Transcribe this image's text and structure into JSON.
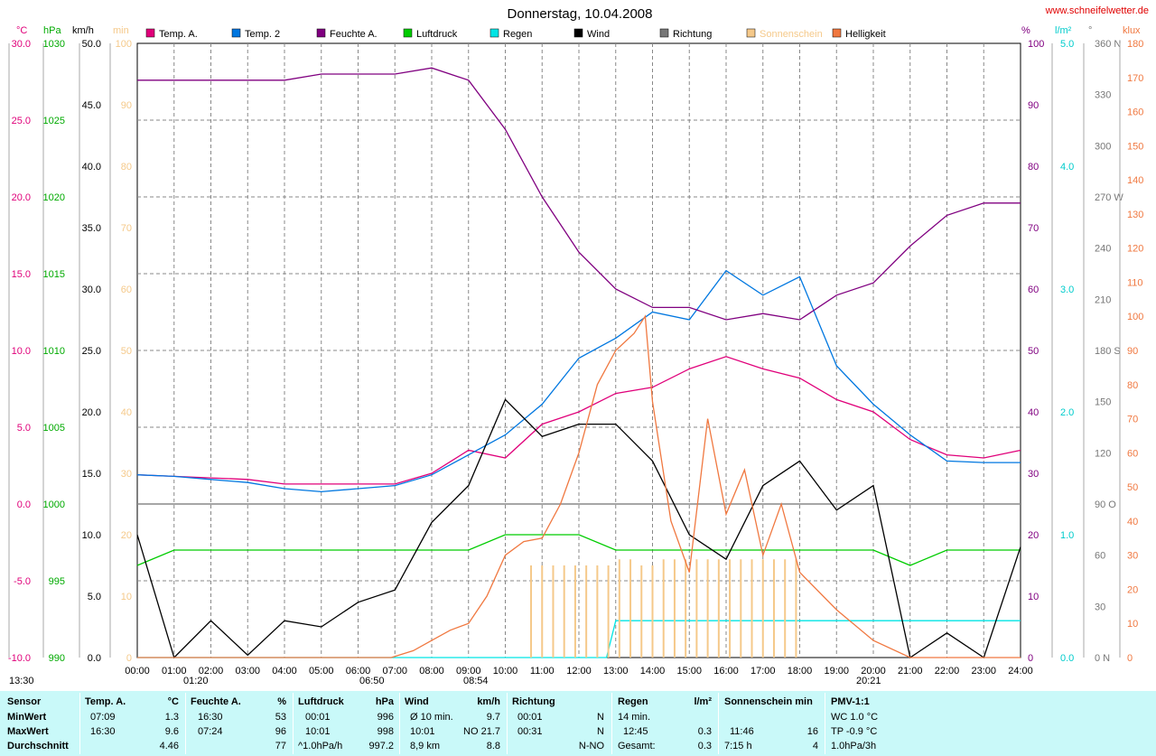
{
  "site": "www.schneifelwetter.de",
  "title": "Donnerstag, 10.04.2008",
  "legend": [
    {
      "label": "Temp. A.",
      "color": "#e0007a"
    },
    {
      "label": "Temp. 2",
      "color": "#0077e0"
    },
    {
      "label": "Feuchte A.",
      "color": "#800080"
    },
    {
      "label": "Luftdruck",
      "color": "#00cc00"
    },
    {
      "label": "Regen",
      "color": "#00e5e5"
    },
    {
      "label": "Wind",
      "color": "#000000"
    },
    {
      "label": "Richtung",
      "color": "#777777"
    },
    {
      "label": "Sonnenschein",
      "color": "#f5c98a"
    },
    {
      "label": "Helligkeit",
      "color": "#f07840"
    }
  ],
  "axis_units": {
    "temp": "°C",
    "press": "hPa",
    "wind": "km/h",
    "min": "min",
    "hum": "%",
    "rain": "l/m²",
    "dir": "°",
    "lux": "klux"
  },
  "axes": {
    "temp": [
      "30.0",
      "25.0",
      "20.0",
      "15.0",
      "10.0",
      "5.0",
      "0.0",
      "-5.0",
      "-10.0"
    ],
    "press": [
      "1030",
      "1025",
      "1020",
      "1015",
      "1010",
      "1005",
      "1000",
      "995",
      "990"
    ],
    "wind": [
      "50.0",
      "45.0",
      "40.0",
      "35.0",
      "30.0",
      "25.0",
      "20.0",
      "15.0",
      "10.0",
      "5.0",
      "0.0"
    ],
    "min": [
      "100",
      "90",
      "80",
      "70",
      "60",
      "50",
      "40",
      "30",
      "20",
      "10",
      "0"
    ],
    "hum": [
      "100",
      "90",
      "80",
      "70",
      "60",
      "50",
      "40",
      "30",
      "20",
      "10",
      "0"
    ],
    "rain": [
      "5.0",
      "4.0",
      "3.0",
      "2.0",
      "1.0",
      "0.0"
    ],
    "dir": [
      "360 N",
      "330",
      "300",
      "270 W",
      "240",
      "210",
      "180 S",
      "150",
      "120",
      "90 O",
      "60",
      "30",
      "0 N"
    ],
    "lux": [
      "180",
      "170",
      "160",
      "150",
      "140",
      "130",
      "120",
      "110",
      "100",
      "90",
      "80",
      "70",
      "60",
      "50",
      "40",
      "30",
      "20",
      "10",
      "0"
    ]
  },
  "xticks": [
    "00:00",
    "01:00",
    "02:00",
    "03:00",
    "04:00",
    "05:00",
    "06:00",
    "07:00",
    "08:00",
    "09:00",
    "10:00",
    "11:00",
    "12:00",
    "13:00",
    "14:00",
    "15:00",
    "16:00",
    "17:00",
    "18:00",
    "19:00",
    "20:00",
    "21:00",
    "22:00",
    "23:00",
    "24:00"
  ],
  "sun_marks": [
    "13:30",
    "01:20",
    "06:50",
    "08:54",
    "20:21"
  ],
  "chart_data": {
    "type": "line",
    "title": "Donnerstag, 10.04.2008",
    "x_unit": "hour",
    "series": [
      {
        "name": "Temp. A.",
        "unit": "°C",
        "color": "#e0007a",
        "x": [
          0,
          1,
          2,
          3,
          4,
          5,
          6,
          7,
          8,
          9,
          10,
          11,
          12,
          13,
          14,
          15,
          16,
          17,
          18,
          19,
          20,
          21,
          22,
          23,
          24
        ],
        "values": [
          1.9,
          1.8,
          1.7,
          1.6,
          1.3,
          1.3,
          1.3,
          1.3,
          2.0,
          3.5,
          3.0,
          5.2,
          6.0,
          7.2,
          7.6,
          8.8,
          9.6,
          8.8,
          8.2,
          6.8,
          6.0,
          4.2,
          3.2,
          3.0,
          3.5
        ]
      },
      {
        "name": "Temp. 2",
        "unit": "°C",
        "color": "#0077e0",
        "x": [
          0,
          1,
          2,
          3,
          4,
          5,
          6,
          7,
          8,
          9,
          10,
          11,
          12,
          13,
          14,
          15,
          16,
          17,
          18,
          19,
          20,
          21,
          22,
          23,
          24
        ],
        "values": [
          1.9,
          1.8,
          1.6,
          1.4,
          1.0,
          0.8,
          1.0,
          1.2,
          1.9,
          3.2,
          4.5,
          6.5,
          9.5,
          10.8,
          12.5,
          12.0,
          15.2,
          13.6,
          14.8,
          9.0,
          6.5,
          4.5,
          2.8,
          2.7,
          2.7
        ]
      },
      {
        "name": "Feuchte A.",
        "unit": "%",
        "color": "#800080",
        "x": [
          0,
          1,
          2,
          3,
          4,
          5,
          6,
          7,
          8,
          9,
          10,
          11,
          12,
          13,
          14,
          15,
          16,
          17,
          18,
          19,
          20,
          21,
          22,
          23,
          24
        ],
        "values": [
          94,
          94,
          94,
          94,
          94,
          95,
          95,
          95,
          96,
          94,
          86,
          75,
          66,
          60,
          57,
          57,
          55,
          56,
          55,
          59,
          61,
          67,
          72,
          74,
          74
        ]
      },
      {
        "name": "Luftdruck",
        "unit": "hPa",
        "color": "#00cc00",
        "x": [
          0,
          1,
          2,
          3,
          4,
          5,
          6,
          7,
          8,
          9,
          10,
          11,
          12,
          13,
          14,
          15,
          16,
          17,
          18,
          19,
          20,
          21,
          22,
          23,
          24
        ],
        "values": [
          996,
          997,
          997,
          997,
          997,
          997,
          997,
          997,
          997,
          997,
          998,
          998,
          998,
          997,
          997,
          997,
          997,
          997,
          997,
          997,
          997,
          996,
          997,
          997,
          997
        ]
      },
      {
        "name": "Regen",
        "unit": "l/m²",
        "color": "#00e5e5",
        "x": [
          0,
          12.5,
          12.75,
          13,
          24
        ],
        "values": [
          0,
          0,
          0,
          0.3,
          0.3
        ]
      },
      {
        "name": "Wind",
        "unit": "km/h",
        "color": "#000000",
        "x": [
          0,
          1,
          2,
          3,
          4,
          5,
          6,
          7,
          8,
          9,
          10,
          11,
          12,
          13,
          14,
          15,
          16,
          17,
          18,
          19,
          20,
          21,
          22,
          23,
          24
        ],
        "values": [
          10,
          0,
          3,
          0.2,
          3,
          2.5,
          4.5,
          5.5,
          11,
          14,
          21,
          18,
          19,
          19,
          16,
          10,
          8,
          14,
          16,
          12,
          14,
          0,
          2,
          0,
          9
        ]
      },
      {
        "name": "Sonnenschein",
        "unit": "min",
        "color": "#f5c98a",
        "x": [
          10.7,
          11.0,
          11.3,
          11.6,
          11.9,
          12.2,
          12.5,
          12.8,
          13.1,
          13.4,
          13.7,
          14.0,
          14.3,
          14.6,
          14.9,
          15.2,
          15.5,
          15.8,
          16.1,
          16.4,
          16.7,
          17.0,
          17.3,
          17.6,
          17.9
        ],
        "values": [
          15,
          15,
          15,
          15,
          15,
          15,
          15,
          15,
          16,
          16,
          15,
          15,
          16,
          16,
          16,
          16,
          16,
          16,
          16,
          16,
          16,
          16,
          16,
          16,
          16
        ]
      },
      {
        "name": "Helligkeit",
        "unit": "klux",
        "color": "#f07840",
        "x": [
          0,
          6.9,
          7.5,
          8,
          8.5,
          9,
          9.5,
          10,
          10.5,
          11,
          11.5,
          12,
          12.5,
          13,
          13.5,
          13.8,
          14,
          14.5,
          15,
          15.5,
          16,
          16.5,
          17,
          17.5,
          18,
          19,
          20,
          21,
          24
        ],
        "values": [
          0,
          0,
          2,
          5,
          8,
          10,
          18,
          30,
          34,
          35,
          45,
          60,
          80,
          90,
          95,
          100,
          75,
          40,
          25,
          70,
          42,
          55,
          30,
          45,
          25,
          14,
          5,
          0,
          0
        ]
      }
    ]
  },
  "stats": {
    "row_labels": {
      "title": "Sensor",
      "min": "MinWert",
      "max": "MaxWert",
      "avg": "Durchschnitt"
    },
    "temp": {
      "title": "Temp. A.",
      "unit": "°C",
      "min_t": "07:09",
      "min": "1.3",
      "max_t": "16:30",
      "max": "9.6",
      "avg": "4.46"
    },
    "hum": {
      "title": "Feuchte A.",
      "unit": "%",
      "min_t": "16:30",
      "min": "53",
      "max_t": "07:24",
      "max": "96",
      "avg": "77"
    },
    "press": {
      "title": "Luftdruck",
      "unit": "hPa",
      "min_t": "00:01",
      "min": "996",
      "max_t": "10:01",
      "max": "998",
      "avg_t": "^1.0hPa/h",
      "avg": "997.2"
    },
    "wind": {
      "title": "Wind",
      "unit": "km/h",
      "min_t": "Ø 10 min.",
      "min": "9.7",
      "max_t": "10:01",
      "max": "NO 21.7",
      "avg_t": "8,9 km",
      "avg": "8.8"
    },
    "dir": {
      "title": "Richtung",
      "min_t": "00:01",
      "min": "N",
      "max_t": "00:31",
      "max": "N",
      "avg": "N-NO"
    },
    "rain": {
      "title": "Regen",
      "unit": "l/m²",
      "min_t": "14 min.",
      "min": "",
      "max_t": "12:45",
      "max": "0.3",
      "avg_t": "Gesamt:",
      "avg": "0.3"
    },
    "sun": {
      "title": "Sonnenschein min",
      "min_t": "11:46",
      "min": "16",
      "max_t": "7:15 h",
      "max": "4"
    },
    "pmv": {
      "title": "PMV-1:1",
      "min": "WC 1.0 °C",
      "max": "TP -0.9 °C",
      "avg": "1.0hPa/3h"
    }
  }
}
